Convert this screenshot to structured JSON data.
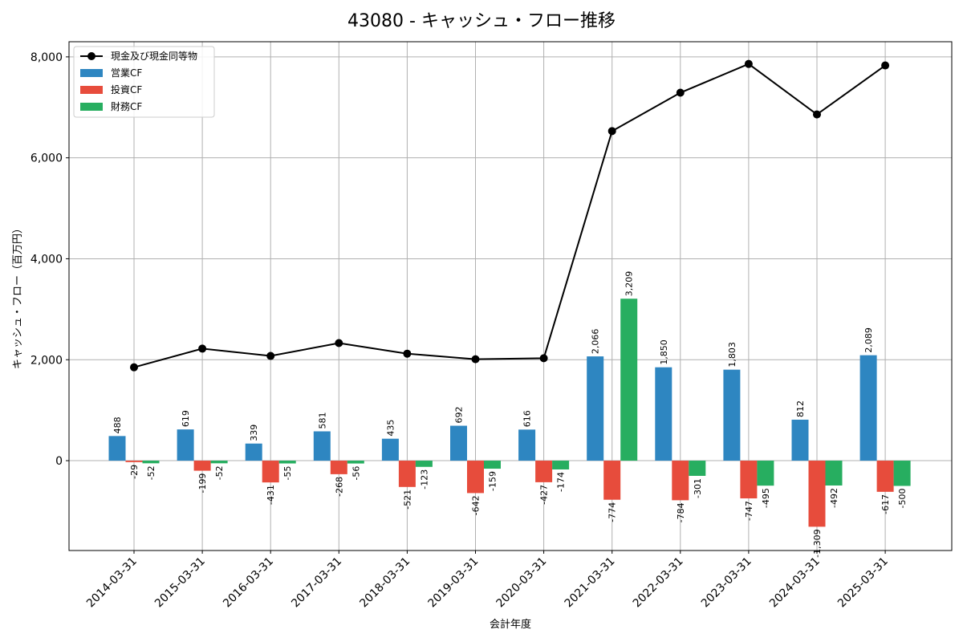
{
  "chart_data": {
    "type": "bar",
    "title": "43080 - キャッシュ・フロー推移",
    "xlabel": "会計年度",
    "ylabel": "キャッシュ・フロー（百万円）",
    "ylim": [
      -1780,
      8300
    ],
    "yticks": [
      0,
      2000,
      4000,
      6000,
      8000
    ],
    "ytick_labels": [
      "0",
      "2,000",
      "4,000",
      "6,000",
      "8,000"
    ],
    "grid": true,
    "legend_position": "top-left",
    "categories": [
      "2014-03-31",
      "2015-03-31",
      "2016-03-31",
      "2017-03-31",
      "2018-03-31",
      "2019-03-31",
      "2020-03-31",
      "2021-03-31",
      "2022-03-31",
      "2023-03-31",
      "2024-03-31",
      "2025-03-31"
    ],
    "series": [
      {
        "name": "営業CF",
        "kind": "bar",
        "color": "#2e86c1",
        "values": [
          488,
          619,
          339,
          581,
          435,
          692,
          616,
          2066,
          1850,
          1803,
          812,
          2089
        ],
        "labels": [
          "488",
          "619",
          "339",
          "581",
          "435",
          "692",
          "616",
          "2,066",
          "1,850",
          "1,803",
          "812",
          "2,089"
        ]
      },
      {
        "name": "投資CF",
        "kind": "bar",
        "color": "#e74c3c",
        "values": [
          -29,
          -199,
          -431,
          -268,
          -521,
          -642,
          -427,
          -774,
          -784,
          -747,
          -1309,
          -617
        ],
        "labels": [
          "-29",
          "-199",
          "-431",
          "-268",
          "-521",
          "-642",
          "-427",
          "-774",
          "-784",
          "-747",
          "-1,309",
          "-617"
        ]
      },
      {
        "name": "財務CF",
        "kind": "bar",
        "color": "#27ae60",
        "values": [
          -52,
          -52,
          -55,
          -56,
          -123,
          -159,
          -174,
          3209,
          -301,
          -495,
          -492,
          -500
        ],
        "labels": [
          "-52",
          "-52",
          "-55",
          "-56",
          "-123",
          "-159",
          "-174",
          "3,209",
          "-301",
          "-495",
          "-492",
          "-500"
        ]
      },
      {
        "name": "現金及び現金同等物",
        "kind": "line",
        "color": "#000000",
        "values": [
          1850,
          2220,
          2075,
          2330,
          2120,
          2010,
          2030,
          6530,
          7290,
          7860,
          6860,
          7830
        ]
      }
    ]
  }
}
